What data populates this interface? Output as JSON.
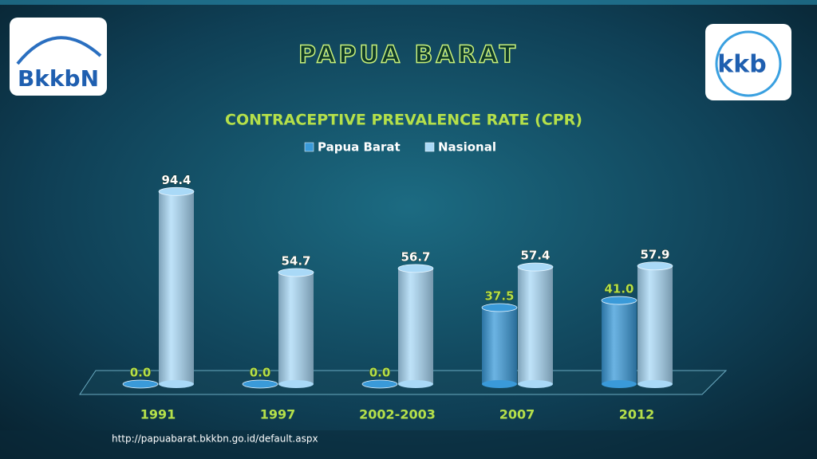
{
  "header": {
    "title": "PAPUA BARAT",
    "logo_left": "BkkbN",
    "logo_right": "kkb"
  },
  "chart_data": {
    "type": "bar",
    "title": "CONTRACEPTIVE PREVALENCE RATE (CPR)",
    "categories": [
      "1991",
      "1997",
      "2002-2003",
      "2007",
      "2012"
    ],
    "series": [
      {
        "name": "Papua Barat",
        "color": "#3a9ad9",
        "values": [
          0.0,
          0.0,
          0.0,
          37.5,
          41.0
        ],
        "value_labels": [
          "0.0",
          "0.0",
          "0.0",
          "37.5",
          "41.0"
        ]
      },
      {
        "name": "Nasional",
        "color": "#a9d9f7",
        "values": [
          94.4,
          54.7,
          56.7,
          57.4,
          57.9
        ]
      }
    ],
    "legend": "top"
  },
  "footer": {
    "url": "http://papuabarat.bkkbn.go.id/default.aspx"
  }
}
